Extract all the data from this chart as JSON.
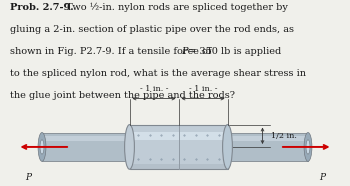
{
  "bg_color": "#f0f0eb",
  "rod_fill": "#b0bec8",
  "rod_edge": "#707880",
  "rod_highlight": "#d0dce6",
  "pipe_fill": "#c0ccd6",
  "pipe_edge": "#808890",
  "pipe_highlight": "#dce8f0",
  "pipe_shadow": "#a0aab4",
  "end_face": "#98aab8",
  "arrow_color": "#cc0000",
  "dim_color": "#333333",
  "text_color": "#1a1a1a",
  "label_p_left": "P",
  "label_p_right": "P",
  "dim_1in_left": "- 1 in. -",
  "dim_1in_right": "- 1 in. -",
  "dim_half": "1/2 in.",
  "title": "Prob. 2.7-9.",
  "line1": " Two ½-in. nylon rods are spliced together by",
  "line2": "gluing a 2-in. section of plastic pipe over the rod ends, as",
  "line3_a": "shown in Fig. P2.7-9. If a tensile force of ",
  "line3_p": "P",
  "line3_b": " = 350 lb is applied",
  "line4": "to the spliced nylon rod, what is the average shear stress in",
  "line5": "the glue joint between the pipe and the rods?",
  "fontsize": 7.0,
  "fontsize_dim": 5.8
}
